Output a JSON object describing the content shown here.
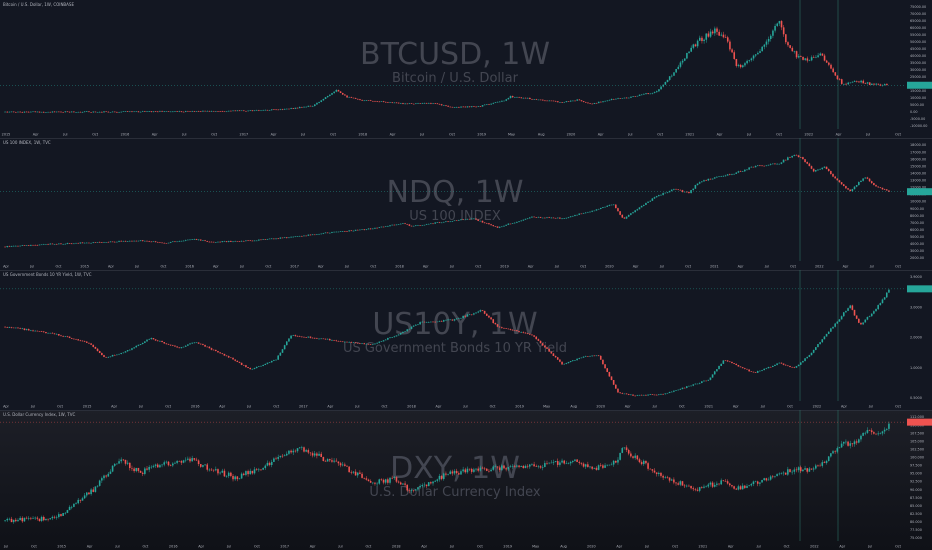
{
  "colors": {
    "background": "#131722",
    "up": "#26a69a",
    "down": "#ef5350",
    "grid": "#1e222d",
    "axis_text": "#b2b5be",
    "watermark": "#434651",
    "crosshair": "#2a6f63",
    "dxy_bg_top": "#1d1f27",
    "dxy_bg_bottom": "#0f1117"
  },
  "chart_data": [
    {
      "type": "candlestick",
      "pane_title": "Bitcoin / U.S. Dollar, 1W, COINBASE",
      "watermark_symbol": "BTCUSD, 1W",
      "watermark_description": "Bitcoin / U.S. Dollar",
      "x_ticks": [
        "2015",
        "Apr",
        "Jul",
        "Oct",
        "2016",
        "Apr",
        "Jul",
        "Oct",
        "2017",
        "Apr",
        "Jul",
        "Oct",
        "2018",
        "Apr",
        "Jul",
        "Oct",
        "2019",
        "May",
        "Aug",
        "2020",
        "Apr",
        "Jul",
        "Oct",
        "2021",
        "Apr",
        "Jul",
        "Oct",
        "2022",
        "Apr",
        "Jul",
        "Oct"
      ],
      "y_ticks": [
        "75000.00",
        "70000.00",
        "65000.00",
        "60000.00",
        "55000.00",
        "50000.00",
        "45000.00",
        "40000.00",
        "35000.00",
        "30000.00",
        "25000.00",
        "20000.00",
        "15000.00",
        "10000.00",
        "5000.00",
        "0.00",
        "-5000.00",
        "-10000.00"
      ],
      "ylim": [
        -12000,
        78000
      ],
      "last_value": 19500,
      "x_start": 2015.0,
      "x_end": 2022.85,
      "trend": [
        [
          2015.0,
          250
        ],
        [
          2015.5,
          260
        ],
        [
          2016.0,
          420
        ],
        [
          2016.5,
          650
        ],
        [
          2017.0,
          980
        ],
        [
          2017.3,
          1300
        ],
        [
          2017.55,
          2700
        ],
        [
          2017.75,
          4800
        ],
        [
          2017.95,
          16500
        ],
        [
          2018.05,
          11000
        ],
        [
          2018.15,
          9000
        ],
        [
          2018.3,
          8200
        ],
        [
          2018.5,
          6500
        ],
        [
          2018.85,
          6300
        ],
        [
          2018.95,
          3700
        ],
        [
          2019.2,
          4000
        ],
        [
          2019.45,
          8500
        ],
        [
          2019.5,
          11500
        ],
        [
          2019.7,
          9500
        ],
        [
          2019.95,
          7300
        ],
        [
          2020.1,
          9000
        ],
        [
          2020.2,
          5800
        ],
        [
          2020.4,
          9400
        ],
        [
          2020.6,
          11500
        ],
        [
          2020.8,
          15000
        ],
        [
          2020.95,
          29000
        ],
        [
          2021.1,
          47000
        ],
        [
          2021.3,
          59000
        ],
        [
          2021.4,
          56000
        ],
        [
          2021.5,
          34000
        ],
        [
          2021.55,
          32000
        ],
        [
          2021.75,
          47000
        ],
        [
          2021.85,
          62000
        ],
        [
          2021.88,
          65000
        ],
        [
          2021.95,
          50000
        ],
        [
          2022.05,
          40000
        ],
        [
          2022.15,
          38000
        ],
        [
          2022.25,
          43000
        ],
        [
          2022.35,
          30000
        ],
        [
          2022.45,
          20000
        ],
        [
          2022.6,
          22500
        ],
        [
          2022.7,
          20000
        ],
        [
          2022.85,
          19500
        ]
      ]
    },
    {
      "type": "candlestick",
      "pane_title": "US 100 INDEX, 1W, TVC",
      "watermark_symbol": "NDQ, 1W",
      "watermark_description": "US 100 INDEX",
      "x_ticks": [
        "Apr",
        "Jul",
        "Oct",
        "2015",
        "Apr",
        "Jul",
        "Oct",
        "2016",
        "Apr",
        "Jul",
        "Oct",
        "2017",
        "Apr",
        "Jul",
        "Oct",
        "2018",
        "Apr",
        "Jul",
        "Oct",
        "2019",
        "Apr",
        "Jul",
        "Oct",
        "2020",
        "Apr",
        "Jul",
        "Oct",
        "2021",
        "Apr",
        "Jul",
        "Oct",
        "2022",
        "Apr",
        "Jul",
        "Oct"
      ],
      "y_ticks": [
        "18000.00",
        "17000.00",
        "16000.00",
        "15000.00",
        "14000.00",
        "13000.00",
        "12000.00",
        "11000.00",
        "10000.00",
        "9000.00",
        "8000.00",
        "7000.00",
        "6000.00",
        "5000.00",
        "4000.00",
        "3000.00",
        "2000.00"
      ],
      "ylim": [
        1500,
        18500
      ],
      "last_value": 11400,
      "x_start": 2014.05,
      "x_end": 2022.85,
      "trend": [
        [
          2014.05,
          3550
        ],
        [
          2014.5,
          3900
        ],
        [
          2015.0,
          4200
        ],
        [
          2015.4,
          4450
        ],
        [
          2015.65,
          4100
        ],
        [
          2015.95,
          4600
        ],
        [
          2016.1,
          4200
        ],
        [
          2016.5,
          4400
        ],
        [
          2016.9,
          4900
        ],
        [
          2017.3,
          5600
        ],
        [
          2017.7,
          6100
        ],
        [
          2018.0,
          6900
        ],
        [
          2018.1,
          6500
        ],
        [
          2018.7,
          7600
        ],
        [
          2018.95,
          6300
        ],
        [
          2019.3,
          7800
        ],
        [
          2019.6,
          7600
        ],
        [
          2019.95,
          8900
        ],
        [
          2020.1,
          9600
        ],
        [
          2020.2,
          7500
        ],
        [
          2020.5,
          10500
        ],
        [
          2020.7,
          11800
        ],
        [
          2020.85,
          11200
        ],
        [
          2020.95,
          12800
        ],
        [
          2021.3,
          14000
        ],
        [
          2021.5,
          15000
        ],
        [
          2021.75,
          15500
        ],
        [
          2021.88,
          16600
        ],
        [
          2021.95,
          16400
        ],
        [
          2022.1,
          14300
        ],
        [
          2022.2,
          14900
        ],
        [
          2022.3,
          13300
        ],
        [
          2022.45,
          11500
        ],
        [
          2022.6,
          13500
        ],
        [
          2022.7,
          12200
        ],
        [
          2022.85,
          11400
        ]
      ]
    },
    {
      "type": "candlestick",
      "pane_title": "US Government Bonds 10 YR Yield, 1W, TVC",
      "watermark_symbol": "US10Y, 1W",
      "watermark_description": "US Government Bonds 10 YR Yield",
      "x_ticks": [
        "Apr",
        "Jul",
        "Oct",
        "2015",
        "Apr",
        "Jul",
        "Oct",
        "2016",
        "Apr",
        "Jul",
        "Oct",
        "2017",
        "Apr",
        "Jul",
        "Oct",
        "2018",
        "Apr",
        "Jul",
        "Oct",
        "2019",
        "May",
        "Aug",
        "2020",
        "Apr",
        "Jul",
        "Oct",
        "2021",
        "Apr",
        "Jul",
        "Oct",
        "2022",
        "Apr",
        "Jul",
        "Oct"
      ],
      "y_ticks": [
        "3.9000",
        "3.0000",
        "2.0000",
        "1.0000",
        "0.5000"
      ],
      "ylim": [
        0.45,
        4.3
      ],
      "last_value": 3.85,
      "x_start": 2014.05,
      "x_end": 2022.85,
      "trend": [
        [
          2014.05,
          2.7
        ],
        [
          2014.3,
          2.6
        ],
        [
          2014.6,
          2.45
        ],
        [
          2014.9,
          2.2
        ],
        [
          2015.05,
          1.75
        ],
        [
          2015.3,
          2.0
        ],
        [
          2015.5,
          2.35
        ],
        [
          2015.8,
          2.05
        ],
        [
          2015.95,
          2.25
        ],
        [
          2016.3,
          1.75
        ],
        [
          2016.5,
          1.4
        ],
        [
          2016.75,
          1.7
        ],
        [
          2016.9,
          2.45
        ],
        [
          2017.3,
          2.3
        ],
        [
          2017.7,
          2.15
        ],
        [
          2017.95,
          2.45
        ],
        [
          2018.2,
          2.85
        ],
        [
          2018.5,
          2.9
        ],
        [
          2018.8,
          3.2
        ],
        [
          2018.95,
          2.7
        ],
        [
          2019.3,
          2.45
        ],
        [
          2019.6,
          1.55
        ],
        [
          2019.8,
          1.8
        ],
        [
          2019.95,
          1.85
        ],
        [
          2020.15,
          0.7
        ],
        [
          2020.3,
          0.62
        ],
        [
          2020.6,
          0.65
        ],
        [
          2020.85,
          0.9
        ],
        [
          2021.05,
          1.1
        ],
        [
          2021.2,
          1.7
        ],
        [
          2021.5,
          1.3
        ],
        [
          2021.75,
          1.6
        ],
        [
          2021.9,
          1.45
        ],
        [
          2022.05,
          1.85
        ],
        [
          2022.2,
          2.4
        ],
        [
          2022.35,
          2.95
        ],
        [
          2022.45,
          3.35
        ],
        [
          2022.55,
          2.75
        ],
        [
          2022.7,
          3.2
        ],
        [
          2022.85,
          3.85
        ]
      ]
    },
    {
      "type": "candlestick",
      "pane_title": "U.S. Dollar Currency Index, 1W, TVC",
      "watermark_symbol": "DXY, 1W",
      "watermark_description": "U.S. Dollar Currency Index",
      "x_ticks": [
        "Jul",
        "Oct",
        "2015",
        "Apr",
        "Jul",
        "Oct",
        "2016",
        "Apr",
        "Jul",
        "Oct",
        "2017",
        "Apr",
        "Jul",
        "Oct",
        "2018",
        "Apr",
        "Jul",
        "Oct",
        "2019",
        "May",
        "Aug",
        "2020",
        "Apr",
        "Jul",
        "Oct",
        "2021",
        "Apr",
        "Jul",
        "Oct",
        "2022",
        "Apr",
        "Jul",
        "Oct"
      ],
      "y_ticks": [
        "112.000",
        "110.000",
        "107.500",
        "105.000",
        "102.500",
        "100.000",
        "97.500",
        "95.000",
        "92.500",
        "90.000",
        "87.500",
        "85.000",
        "82.500",
        "80.000",
        "77.500",
        "75.000"
      ],
      "ylim": [
        74,
        113
      ],
      "last_value": 110.5,
      "x_start": 2014.05,
      "x_end": 2022.85,
      "trend": [
        [
          2014.05,
          80.2
        ],
        [
          2014.4,
          80.8
        ],
        [
          2014.6,
          82.0
        ],
        [
          2014.8,
          86.5
        ],
        [
          2014.95,
          90.0
        ],
        [
          2015.2,
          99.0
        ],
        [
          2015.4,
          95.0
        ],
        [
          2015.6,
          97.5
        ],
        [
          2015.9,
          99.0
        ],
        [
          2016.1,
          96.0
        ],
        [
          2016.35,
          93.5
        ],
        [
          2016.6,
          96.5
        ],
        [
          2016.95,
          102.5
        ],
        [
          2017.1,
          101.0
        ],
        [
          2017.4,
          97.0
        ],
        [
          2017.7,
          92.0
        ],
        [
          2017.95,
          93.0
        ],
        [
          2018.1,
          89.0
        ],
        [
          2018.3,
          92.5
        ],
        [
          2018.5,
          95.0
        ],
        [
          2018.95,
          96.5
        ],
        [
          2019.3,
          97.0
        ],
        [
          2019.7,
          98.5
        ],
        [
          2019.95,
          96.5
        ],
        [
          2020.15,
          99.0
        ],
        [
          2020.2,
          102.5
        ],
        [
          2020.35,
          99.0
        ],
        [
          2020.6,
          93.5
        ],
        [
          2020.95,
          90.0
        ],
        [
          2021.2,
          92.5
        ],
        [
          2021.35,
          90.0
        ],
        [
          2021.6,
          93.0
        ],
        [
          2021.9,
          96.0
        ],
        [
          2022.05,
          95.5
        ],
        [
          2022.2,
          98.5
        ],
        [
          2022.35,
          103.5
        ],
        [
          2022.5,
          104.5
        ],
        [
          2022.65,
          108.0
        ],
        [
          2022.75,
          106.0
        ],
        [
          2022.85,
          110.5
        ]
      ]
    }
  ]
}
